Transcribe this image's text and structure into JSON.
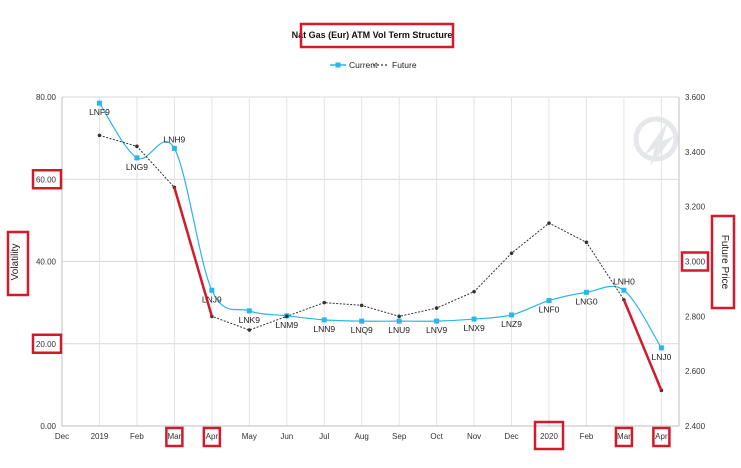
{
  "chart_data": {
    "type": "line",
    "title": "Nat Gas (Eur) ATM Vol Term Structure",
    "ylabel_left": "Volatility",
    "ylabel_right": "Future Price",
    "ylim_left": [
      0,
      80
    ],
    "ylim_right": [
      2.4,
      3.6
    ],
    "yticks_left": [
      "0.00",
      "20.00",
      "40.00",
      "60.00",
      "80.00"
    ],
    "yticks_right": [
      "2.400",
      "2.600",
      "2.800",
      "3.000",
      "3.200",
      "3.400",
      "3.600"
    ],
    "x_labels": [
      "Dec",
      "2019",
      "Feb",
      "Mar",
      "Apr",
      "May",
      "Jun",
      "Jul",
      "Aug",
      "Sep",
      "Oct",
      "Nov",
      "Dec",
      "2020",
      "Feb",
      "Mar",
      "Apr"
    ],
    "legend": {
      "position": "top-center",
      "entries": [
        "Current",
        "Future"
      ]
    },
    "grid": true,
    "series": [
      {
        "name": "Current",
        "axis": "left",
        "color": "#29b6e8",
        "x_index": [
          1,
          2,
          3,
          4,
          5,
          6,
          7,
          8,
          9,
          10,
          11,
          12,
          13,
          14,
          15,
          16
        ],
        "point_labels": [
          "LNF9",
          "LNG9",
          "LNH9",
          "LNJ9",
          "LNK9",
          "LNM9",
          "LNN9",
          "LNQ9",
          "LNU9",
          "LNV9",
          "LNX9",
          "LNZ9",
          "LNF0",
          "LNG0",
          "LNH0",
          "LNJ0"
        ],
        "values": [
          78.5,
          65.2,
          67.5,
          33.0,
          28.0,
          26.8,
          25.8,
          25.5,
          25.5,
          25.5,
          26.0,
          27.0,
          30.5,
          32.5,
          33.0,
          19.0
        ]
      },
      {
        "name": "Future",
        "axis": "right",
        "color": "#333333",
        "x_index": [
          1,
          2,
          3,
          4,
          5,
          6,
          7,
          8,
          9,
          10,
          11,
          12,
          13,
          14,
          15,
          16
        ],
        "values": [
          3.46,
          3.42,
          3.27,
          2.8,
          2.75,
          2.8,
          2.85,
          2.84,
          2.8,
          2.83,
          2.89,
          3.03,
          3.14,
          3.07,
          2.86,
          2.53
        ]
      }
    ],
    "annotations": {
      "color": "#d11a2a",
      "highlighted_x_labels": [
        "Mar",
        "Apr",
        "2020",
        "Mar",
        "Apr"
      ],
      "trend_lines": [
        {
          "from": {
            "x_index": 3,
            "value": 3.27
          },
          "to": {
            "x_index": 4,
            "value": 2.8
          }
        },
        {
          "from": {
            "x_index": 15,
            "value": 2.86
          },
          "to": {
            "x_index": 16,
            "value": 2.53
          }
        }
      ]
    }
  }
}
